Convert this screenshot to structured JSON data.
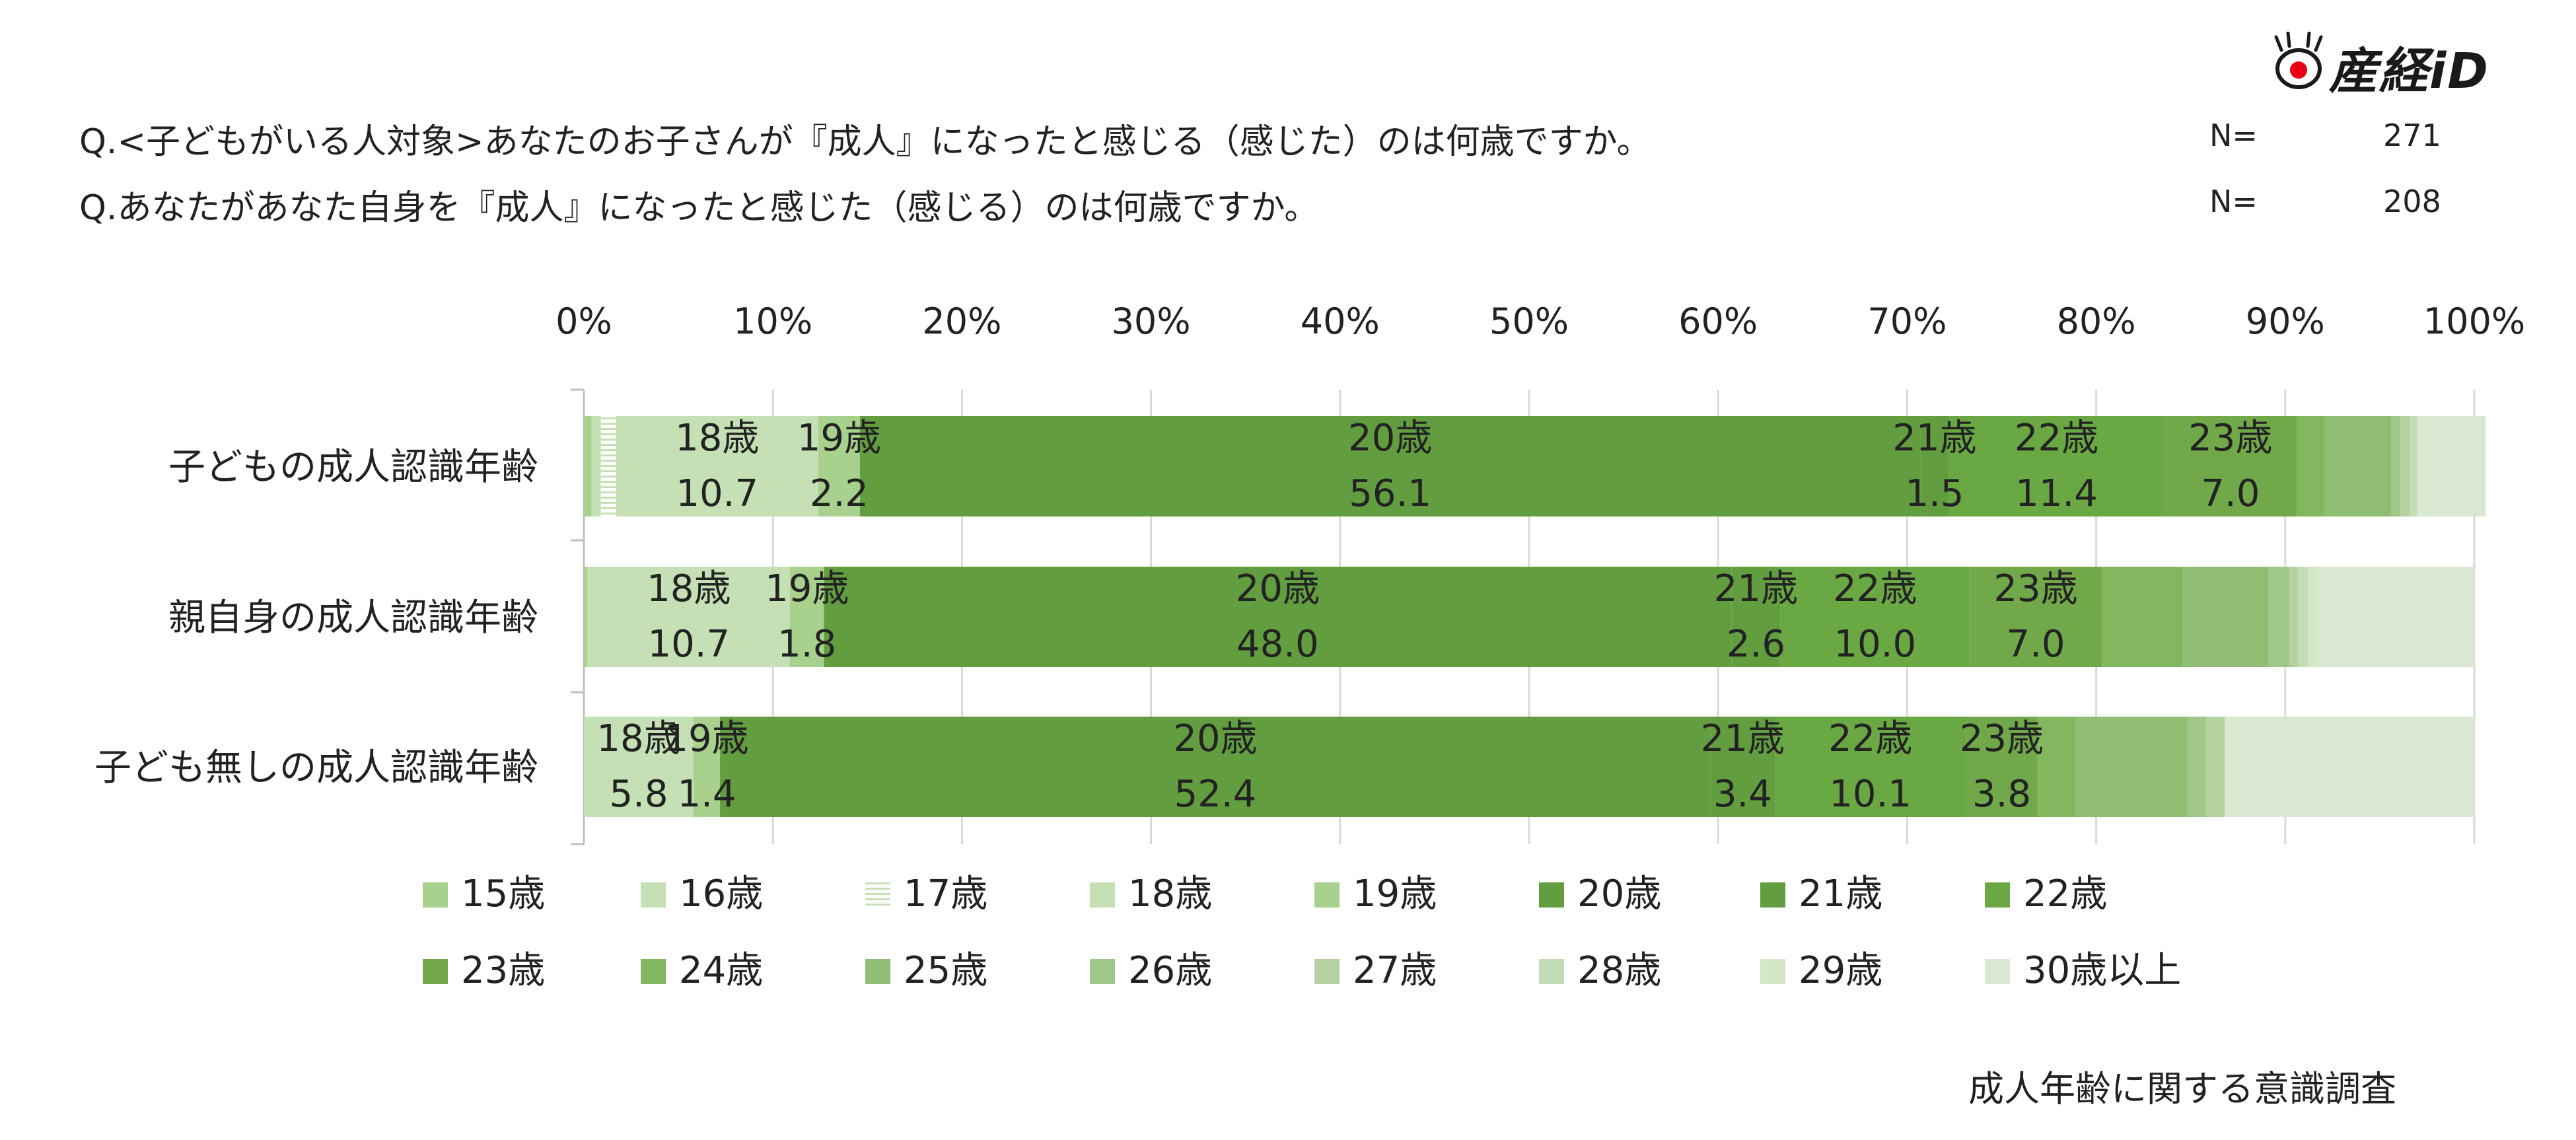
{
  "brand": {
    "logo_text": "産経iD"
  },
  "questions": [
    {
      "text": "Q.<子どもがいる人対象>あなたのお子さんが『成人』になったと感じる（感じた）のは何歳ですか。",
      "n_label": "N=",
      "n_value": "271"
    },
    {
      "text": "Q.あなたがあなた自身を『成人』になったと感じた（感じる）のは何歳ですか。",
      "n_label": "N=",
      "n_value": "208"
    }
  ],
  "source": "成人年齢に関する意識調査",
  "chart_data": {
    "type": "bar",
    "orientation": "horizontal",
    "stacked": true,
    "percent_stacked": true,
    "xlim": [
      0,
      100
    ],
    "x_ticks": [
      "0%",
      "10%",
      "20%",
      "30%",
      "40%",
      "50%",
      "60%",
      "70%",
      "80%",
      "90%",
      "100%"
    ],
    "grid": true,
    "legend_position": "bottom",
    "categories": [
      "子どもの成人認識年齢",
      "親自身の成人認識年齢",
      "子ども無しの成人認識年齢"
    ],
    "series": [
      {
        "name": "15歳",
        "color": "#a9d18e",
        "values": [
          0.4,
          0.2,
          0.0
        ]
      },
      {
        "name": "16歳",
        "color": "#c5e0b4",
        "values": [
          0.5,
          0.0,
          0.0
        ]
      },
      {
        "name": "17歳",
        "color": "#e2f0d9",
        "pattern": true,
        "values": [
          0.8,
          0.0,
          0.0
        ]
      },
      {
        "name": "18歳",
        "color": "#c5e0b4",
        "values": [
          10.7,
          10.7,
          5.8
        ]
      },
      {
        "name": "19歳",
        "color": "#a9d18e",
        "values": [
          2.2,
          1.8,
          1.4
        ]
      },
      {
        "name": "20歳",
        "color": "#629d3f",
        "values": [
          56.1,
          48.0,
          52.4
        ]
      },
      {
        "name": "21歳",
        "color": "#629d3f",
        "values": [
          1.5,
          2.6,
          3.4
        ]
      },
      {
        "name": "22歳",
        "color": "#6aa843",
        "values": [
          11.4,
          10.0,
          10.1
        ]
      },
      {
        "name": "23歳",
        "color": "#70a84a",
        "values": [
          7.0,
          7.0,
          3.8
        ]
      },
      {
        "name": "24歳",
        "color": "#82b65f",
        "values": [
          1.5,
          4.3,
          2.0
        ]
      },
      {
        "name": "25歳",
        "color": "#8fbd72",
        "values": [
          3.5,
          4.5,
          5.9
        ]
      },
      {
        "name": "26歳",
        "color": "#9fc789",
        "values": [
          0.5,
          1.1,
          1.0
        ]
      },
      {
        "name": "27歳",
        "color": "#b5d3a1",
        "values": [
          0.5,
          0.5,
          1.0
        ]
      },
      {
        "name": "28歳",
        "color": "#c5ddb6",
        "values": [
          0.4,
          0.5,
          0.0
        ]
      },
      {
        "name": "29歳",
        "color": "#d3e6c7",
        "values": [
          0.0,
          0.5,
          0.0
        ]
      },
      {
        "name": "30歳以上",
        "color": "#d9e8d0",
        "values": [
          3.6,
          8.3,
          13.2
        ]
      }
    ],
    "data_labels": {
      "shown_for": [
        "18歳",
        "19歳",
        "20歳",
        "21歳",
        "22歳",
        "23歳"
      ],
      "format": "series name above, value below"
    }
  }
}
